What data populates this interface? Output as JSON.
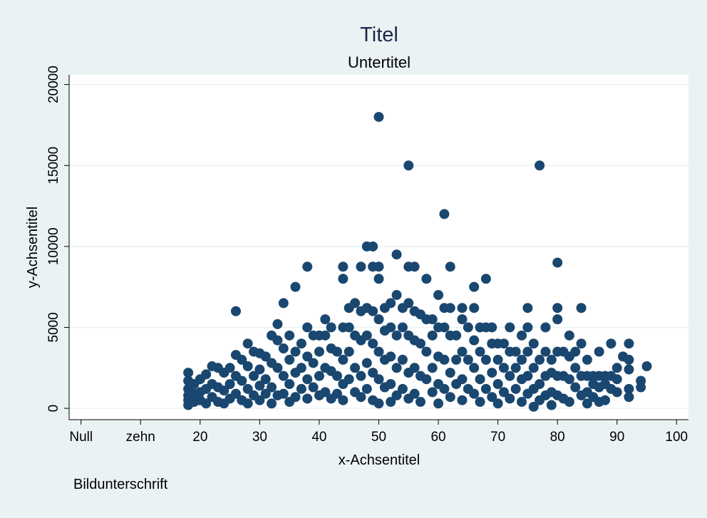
{
  "chart_data": {
    "type": "scatter",
    "title": "Titel",
    "subtitle": "Untertitel",
    "xlabel": "x-Achsentitel",
    "ylabel": "y-Achsentitel",
    "caption": "Bildunterschrift",
    "xlim": [
      -2,
      102
    ],
    "ylim": [
      -700,
      20600
    ],
    "xticks": [
      {
        "value": 0,
        "label": "Null"
      },
      {
        "value": 10,
        "label": "zehn"
      },
      {
        "value": 20,
        "label": "20"
      },
      {
        "value": 30,
        "label": "30"
      },
      {
        "value": 40,
        "label": "40"
      },
      {
        "value": 50,
        "label": "50"
      },
      {
        "value": 60,
        "label": "60"
      },
      {
        "value": 70,
        "label": "70"
      },
      {
        "value": 80,
        "label": "80"
      },
      {
        "value": 90,
        "label": "90"
      },
      {
        "value": 100,
        "label": "100"
      }
    ],
    "yticks": [
      {
        "value": 0,
        "label": "0"
      },
      {
        "value": 5000,
        "label": "5000"
      },
      {
        "value": 10000,
        "label": "10000"
      },
      {
        "value": 15000,
        "label": "15000"
      },
      {
        "value": 20000,
        "label": "20000"
      }
    ],
    "grid": true,
    "marker_color": "#1a476f",
    "series": [
      {
        "points": [
          [
            18,
            2200
          ],
          [
            18,
            1700
          ],
          [
            18,
            1200
          ],
          [
            18,
            800
          ],
          [
            18,
            500
          ],
          [
            18,
            200
          ],
          [
            19,
            1500
          ],
          [
            19,
            900
          ],
          [
            19,
            400
          ],
          [
            20,
            1800
          ],
          [
            20,
            1000
          ],
          [
            20,
            500
          ],
          [
            21,
            2100
          ],
          [
            21,
            1200
          ],
          [
            21,
            300
          ],
          [
            22,
            2600
          ],
          [
            22,
            1500
          ],
          [
            22,
            700
          ],
          [
            23,
            2500
          ],
          [
            23,
            1300
          ],
          [
            23,
            400
          ],
          [
            24,
            2200
          ],
          [
            24,
            1100
          ],
          [
            24,
            300
          ],
          [
            25,
            2500
          ],
          [
            25,
            1500
          ],
          [
            25,
            600
          ],
          [
            26,
            6000
          ],
          [
            26,
            3300
          ],
          [
            26,
            2000
          ],
          [
            26,
            900
          ],
          [
            27,
            3000
          ],
          [
            27,
            1700
          ],
          [
            27,
            500
          ],
          [
            28,
            4000
          ],
          [
            28,
            2600
          ],
          [
            28,
            1200
          ],
          [
            28,
            300
          ],
          [
            29,
            3500
          ],
          [
            29,
            2000
          ],
          [
            29,
            800
          ],
          [
            30,
            3400
          ],
          [
            30,
            2400
          ],
          [
            30,
            1400
          ],
          [
            30,
            500
          ],
          [
            31,
            3200
          ],
          [
            31,
            1800
          ],
          [
            31,
            900
          ],
          [
            32,
            4500
          ],
          [
            32,
            2800
          ],
          [
            32,
            1300
          ],
          [
            32,
            300
          ],
          [
            33,
            5200
          ],
          [
            33,
            4200
          ],
          [
            33,
            2500
          ],
          [
            33,
            800
          ],
          [
            34,
            6500
          ],
          [
            34,
            3700
          ],
          [
            34,
            2000
          ],
          [
            34,
            900
          ],
          [
            35,
            4500
          ],
          [
            35,
            3000
          ],
          [
            35,
            1500
          ],
          [
            35,
            400
          ],
          [
            36,
            7500
          ],
          [
            36,
            3500
          ],
          [
            36,
            2200
          ],
          [
            36,
            700
          ],
          [
            37,
            4000
          ],
          [
            37,
            2500
          ],
          [
            37,
            1200
          ],
          [
            38,
            8750
          ],
          [
            38,
            5000
          ],
          [
            38,
            3200
          ],
          [
            38,
            1800
          ],
          [
            38,
            600
          ],
          [
            39,
            4500
          ],
          [
            39,
            2800
          ],
          [
            39,
            1300
          ],
          [
            40,
            4500
          ],
          [
            40,
            3500
          ],
          [
            40,
            2000
          ],
          [
            40,
            800
          ],
          [
            41,
            5500
          ],
          [
            41,
            4500
          ],
          [
            41,
            2500
          ],
          [
            41,
            1000
          ],
          [
            42,
            5000
          ],
          [
            42,
            3700
          ],
          [
            42,
            2300
          ],
          [
            42,
            600
          ],
          [
            43,
            3500
          ],
          [
            43,
            2000
          ],
          [
            43,
            900
          ],
          [
            44,
            8750
          ],
          [
            44,
            8000
          ],
          [
            44,
            5000
          ],
          [
            44,
            3000
          ],
          [
            44,
            1500
          ],
          [
            44,
            500
          ],
          [
            45,
            6200
          ],
          [
            45,
            5000
          ],
          [
            45,
            3500
          ],
          [
            45,
            1800
          ],
          [
            46,
            6500
          ],
          [
            46,
            4500
          ],
          [
            46,
            2500
          ],
          [
            46,
            1000
          ],
          [
            47,
            8750
          ],
          [
            47,
            6000
          ],
          [
            47,
            4200
          ],
          [
            47,
            2000
          ],
          [
            47,
            700
          ],
          [
            48,
            10000
          ],
          [
            48,
            6200
          ],
          [
            48,
            4500
          ],
          [
            48,
            2800
          ],
          [
            48,
            1200
          ],
          [
            49,
            10000
          ],
          [
            49,
            8750
          ],
          [
            49,
            6000
          ],
          [
            49,
            4000
          ],
          [
            49,
            2200
          ],
          [
            49,
            500
          ],
          [
            50,
            18000
          ],
          [
            50,
            8750
          ],
          [
            50,
            8000
          ],
          [
            50,
            5500
          ],
          [
            50,
            3500
          ],
          [
            50,
            1800
          ],
          [
            50,
            300
          ],
          [
            51,
            6200
          ],
          [
            51,
            4800
          ],
          [
            51,
            3000
          ],
          [
            51,
            1300
          ],
          [
            52,
            6500
          ],
          [
            52,
            5000
          ],
          [
            52,
            3200
          ],
          [
            52,
            1500
          ],
          [
            52,
            400
          ],
          [
            53,
            9500
          ],
          [
            53,
            7000
          ],
          [
            53,
            4500
          ],
          [
            53,
            2500
          ],
          [
            53,
            800
          ],
          [
            54,
            6200
          ],
          [
            54,
            5000
          ],
          [
            54,
            3000
          ],
          [
            54,
            1200
          ],
          [
            55,
            15000
          ],
          [
            55,
            8750
          ],
          [
            55,
            6500
          ],
          [
            55,
            4500
          ],
          [
            55,
            2200
          ],
          [
            55,
            600
          ],
          [
            56,
            8750
          ],
          [
            56,
            6000
          ],
          [
            56,
            4200
          ],
          [
            56,
            2500
          ],
          [
            56,
            900
          ],
          [
            57,
            5800
          ],
          [
            57,
            4000
          ],
          [
            57,
            2000
          ],
          [
            57,
            400
          ],
          [
            58,
            8000
          ],
          [
            58,
            5500
          ],
          [
            58,
            3500
          ],
          [
            58,
            1800
          ],
          [
            59,
            5500
          ],
          [
            59,
            4500
          ],
          [
            59,
            2500
          ],
          [
            59,
            1000
          ],
          [
            60,
            7000
          ],
          [
            60,
            5000
          ],
          [
            60,
            3200
          ],
          [
            60,
            1500
          ],
          [
            60,
            300
          ],
          [
            61,
            12000
          ],
          [
            61,
            6200
          ],
          [
            61,
            5000
          ],
          [
            61,
            3000
          ],
          [
            61,
            1200
          ],
          [
            62,
            8750
          ],
          [
            62,
            6200
          ],
          [
            62,
            4500
          ],
          [
            62,
            2200
          ],
          [
            62,
            700
          ],
          [
            63,
            4500
          ],
          [
            63,
            3000
          ],
          [
            63,
            1500
          ],
          [
            64,
            6200
          ],
          [
            64,
            5500
          ],
          [
            64,
            3500
          ],
          [
            64,
            1800
          ],
          [
            64,
            500
          ],
          [
            65,
            5000
          ],
          [
            65,
            3000
          ],
          [
            65,
            1200
          ],
          [
            66,
            7500
          ],
          [
            66,
            6200
          ],
          [
            66,
            4200
          ],
          [
            66,
            2500
          ],
          [
            66,
            900
          ],
          [
            67,
            5000
          ],
          [
            67,
            3500
          ],
          [
            67,
            1800
          ],
          [
            67,
            400
          ],
          [
            68,
            8000
          ],
          [
            68,
            5000
          ],
          [
            68,
            3000
          ],
          [
            68,
            1200
          ],
          [
            69,
            5000
          ],
          [
            69,
            4000
          ],
          [
            69,
            2200
          ],
          [
            69,
            700
          ],
          [
            70,
            4000
          ],
          [
            70,
            3000
          ],
          [
            70,
            1500
          ],
          [
            70,
            300
          ],
          [
            71,
            4000
          ],
          [
            71,
            2500
          ],
          [
            71,
            1000
          ],
          [
            72,
            5000
          ],
          [
            72,
            3500
          ],
          [
            72,
            2000
          ],
          [
            72,
            600
          ],
          [
            73,
            3500
          ],
          [
            73,
            2500
          ],
          [
            73,
            1200
          ],
          [
            74,
            4500
          ],
          [
            74,
            3000
          ],
          [
            74,
            1800
          ],
          [
            74,
            400
          ],
          [
            75,
            6200
          ],
          [
            75,
            5000
          ],
          [
            75,
            3500
          ],
          [
            75,
            2000
          ],
          [
            75,
            900
          ],
          [
            76,
            4000
          ],
          [
            76,
            2500
          ],
          [
            76,
            1200
          ],
          [
            76,
            100
          ],
          [
            77,
            15000
          ],
          [
            77,
            3000
          ],
          [
            77,
            1500
          ],
          [
            77,
            500
          ],
          [
            78,
            5000
          ],
          [
            78,
            3500
          ],
          [
            78,
            2000
          ],
          [
            78,
            800
          ],
          [
            79,
            3000
          ],
          [
            79,
            2200
          ],
          [
            79,
            1000
          ],
          [
            79,
            200
          ],
          [
            80,
            9000
          ],
          [
            80,
            6200
          ],
          [
            80,
            5500
          ],
          [
            80,
            3500
          ],
          [
            80,
            2000
          ],
          [
            80,
            800
          ],
          [
            81,
            3500
          ],
          [
            81,
            2000
          ],
          [
            81,
            600
          ],
          [
            82,
            4500
          ],
          [
            82,
            3200
          ],
          [
            82,
            1800
          ],
          [
            82,
            400
          ],
          [
            83,
            3500
          ],
          [
            83,
            2500
          ],
          [
            83,
            1300
          ],
          [
            84,
            6200
          ],
          [
            84,
            4000
          ],
          [
            84,
            2000
          ],
          [
            84,
            800
          ],
          [
            85,
            3000
          ],
          [
            85,
            2000
          ],
          [
            85,
            1000
          ],
          [
            85,
            300
          ],
          [
            86,
            2000
          ],
          [
            86,
            1500
          ],
          [
            86,
            700
          ],
          [
            87,
            3500
          ],
          [
            87,
            2000
          ],
          [
            87,
            1300
          ],
          [
            87,
            400
          ],
          [
            88,
            2000
          ],
          [
            88,
            1500
          ],
          [
            88,
            500
          ],
          [
            89,
            4000
          ],
          [
            89,
            2000
          ],
          [
            89,
            1200
          ],
          [
            90,
            2500
          ],
          [
            90,
            1800
          ],
          [
            90,
            1000
          ],
          [
            91,
            3200
          ],
          [
            92,
            4000
          ],
          [
            92,
            3000
          ],
          [
            92,
            2400
          ],
          [
            92,
            1200
          ],
          [
            92,
            700
          ],
          [
            94,
            1700
          ],
          [
            94,
            1300
          ],
          [
            95,
            2600
          ]
        ]
      }
    ]
  }
}
